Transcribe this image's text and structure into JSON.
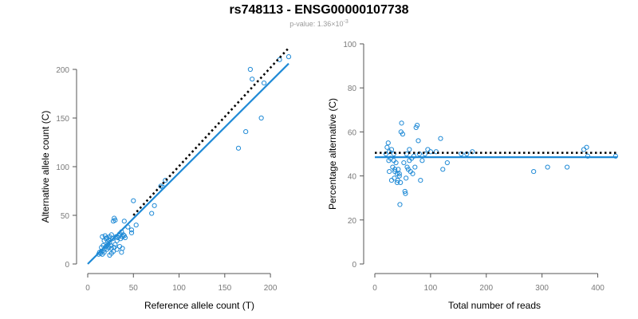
{
  "title": "rs748113 - ENSG00000107738",
  "subtitle": {
    "prefix": "p-value: 1.36×10",
    "exponent": "-3"
  },
  "colors": {
    "point": "#1f8ad6",
    "fit_line": "#1f8ad6",
    "reference_line": "#000000",
    "axis": "#555555"
  },
  "chart_data": [
    {
      "type": "scatter",
      "title": "",
      "xlabel": "Reference allele count (T)",
      "ylabel": "Alternative allele count (C)",
      "xlim": [
        0,
        220
      ],
      "ylim": [
        0,
        200
      ],
      "xticks": [
        0,
        50,
        100,
        150,
        200
      ],
      "yticks": [
        0,
        50,
        100,
        150,
        200
      ],
      "grid": false,
      "points": [
        [
          12,
          10
        ],
        [
          13,
          12
        ],
        [
          14,
          11
        ],
        [
          15,
          13
        ],
        [
          16,
          10
        ],
        [
          17,
          14
        ],
        [
          18,
          12
        ],
        [
          15,
          17
        ],
        [
          17,
          19
        ],
        [
          19,
          16
        ],
        [
          20,
          18
        ],
        [
          21,
          15
        ],
        [
          22,
          20
        ],
        [
          23,
          17
        ],
        [
          24,
          22
        ],
        [
          25,
          19
        ],
        [
          26,
          16
        ],
        [
          18,
          24
        ],
        [
          20,
          26
        ],
        [
          22,
          23
        ],
        [
          16,
          28
        ],
        [
          19,
          29
        ],
        [
          21,
          27
        ],
        [
          23,
          25
        ],
        [
          24,
          28
        ],
        [
          26,
          30
        ],
        [
          27,
          26
        ],
        [
          28,
          44
        ],
        [
          29,
          47
        ],
        [
          30,
          45
        ],
        [
          31,
          28
        ],
        [
          32,
          24
        ],
        [
          33,
          27
        ],
        [
          34,
          29
        ],
        [
          35,
          31
        ],
        [
          36,
          26
        ],
        [
          37,
          33
        ],
        [
          38,
          28
        ],
        [
          39,
          30
        ],
        [
          40,
          29
        ],
        [
          41,
          27
        ],
        [
          30,
          20
        ],
        [
          32,
          15
        ],
        [
          35,
          18
        ],
        [
          38,
          16
        ],
        [
          28,
          13
        ],
        [
          26,
          11
        ],
        [
          24,
          9
        ],
        [
          29,
          17
        ],
        [
          37,
          12
        ],
        [
          40,
          44
        ],
        [
          44,
          38
        ],
        [
          48,
          35
        ],
        [
          50,
          65
        ],
        [
          53,
          40
        ],
        [
          48,
          32
        ],
        [
          70,
          52
        ],
        [
          73,
          60
        ],
        [
          80,
          80
        ],
        [
          82,
          79
        ],
        [
          85,
          86
        ],
        [
          165,
          119
        ],
        [
          173,
          136
        ],
        [
          178,
          200
        ],
        [
          180,
          190
        ],
        [
          190,
          150
        ],
        [
          193,
          186
        ],
        [
          220,
          213
        ],
        [
          210,
          210
        ]
      ],
      "series": [
        {
          "name": "fit",
          "style": "solid",
          "color": "#1f8ad6",
          "x": [
            0,
            220
          ],
          "y": [
            0,
            206
          ]
        },
        {
          "name": "expected",
          "style": "dotted",
          "color": "#000000",
          "x": [
            50,
            220
          ],
          "y": [
            50,
            222
          ]
        }
      ]
    },
    {
      "type": "scatter",
      "title": "",
      "xlabel": "Total number of reads",
      "ylabel": "Percentage alternative (C)",
      "xlim": [
        0,
        435
      ],
      "ylim": [
        0,
        100
      ],
      "xticks": [
        0,
        100,
        200,
        300,
        400
      ],
      "yticks": [
        0,
        20,
        40,
        60,
        80,
        100
      ],
      "grid": false,
      "points": [
        [
          20,
          50
        ],
        [
          22,
          53
        ],
        [
          24,
          55
        ],
        [
          25,
          47
        ],
        [
          26,
          42
        ],
        [
          28,
          48
        ],
        [
          30,
          52
        ],
        [
          32,
          44
        ],
        [
          34,
          50
        ],
        [
          35,
          39
        ],
        [
          36,
          43
        ],
        [
          38,
          46
        ],
        [
          40,
          41
        ],
        [
          41,
          38
        ],
        [
          42,
          43
        ],
        [
          44,
          40
        ],
        [
          45,
          27
        ],
        [
          46,
          37
        ],
        [
          47,
          60
        ],
        [
          48,
          64
        ],
        [
          50,
          59
        ],
        [
          52,
          46
        ],
        [
          54,
          33
        ],
        [
          55,
          32
        ],
        [
          57,
          50
        ],
        [
          58,
          44
        ],
        [
          60,
          43
        ],
        [
          62,
          52
        ],
        [
          64,
          42
        ],
        [
          66,
          48
        ],
        [
          68,
          41
        ],
        [
          70,
          49
        ],
        [
          72,
          44
        ],
        [
          74,
          62
        ],
        [
          76,
          63
        ],
        [
          78,
          56
        ],
        [
          80,
          50
        ],
        [
          82,
          38
        ],
        [
          85,
          47
        ],
        [
          90,
          50
        ],
        [
          95,
          52
        ],
        [
          100,
          51
        ],
        [
          110,
          51
        ],
        [
          118,
          57
        ],
        [
          122,
          43
        ],
        [
          130,
          46
        ],
        [
          155,
          50
        ],
        [
          165,
          50
        ],
        [
          175,
          51
        ],
        [
          285,
          42
        ],
        [
          310,
          44
        ],
        [
          345,
          44
        ],
        [
          375,
          52
        ],
        [
          380,
          53
        ],
        [
          382,
          49
        ],
        [
          432,
          49
        ],
        [
          62,
          47
        ],
        [
          56,
          39
        ],
        [
          34,
          47
        ],
        [
          30,
          38
        ],
        [
          26,
          51
        ],
        [
          40,
          37
        ],
        [
          44,
          41
        ],
        [
          36,
          42
        ]
      ],
      "series": [
        {
          "name": "fit",
          "style": "solid",
          "color": "#1f8ad6",
          "x": [
            0,
            435
          ],
          "y": [
            48.5,
            48.5
          ]
        },
        {
          "name": "expected",
          "style": "dotted",
          "color": "#000000",
          "x": [
            0,
            435
          ],
          "y": [
            50.5,
            50.5
          ]
        }
      ]
    }
  ]
}
